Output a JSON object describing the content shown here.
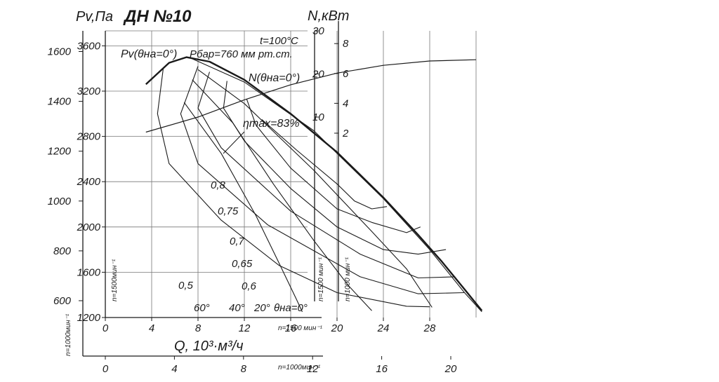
{
  "chart_data": {
    "type": "line",
    "title": "ДН №10",
    "pv_axis_label": "Pv,Па",
    "n_axis_label": "N,кВт",
    "x_axis_label": "Q, 10³·м³/ч",
    "conditions": [
      "t=100°C",
      "Pбар=760 мм рт.ст."
    ],
    "pv_curve_label": "Pv(θна=0°)",
    "n_curve_label": "N(θна=0°)",
    "eta_max_label": "ηmax=83%",
    "speed_labels": {
      "x1500": "n=1500 мин⁻¹",
      "x1000": "n=1000мин⁻¹",
      "y1500": "n=1500мин⁻¹",
      "y1000": "n=1000мин⁻¹",
      "n1500": "n=1500 мин⁻¹",
      "n1000": "n=1000 мин⁻¹"
    },
    "x1500_ticks": [
      "0",
      "4",
      "8",
      "12",
      "16",
      "20",
      "24",
      "28"
    ],
    "x1000_ticks": [
      "0",
      "4",
      "8",
      "12",
      "16",
      "20"
    ],
    "pv1500_ticks": [
      "1200",
      "1600",
      "2000",
      "2400",
      "2800",
      "3200",
      "3600"
    ],
    "pv1000_ticks": [
      "600",
      "800",
      "1000",
      "1200",
      "1400",
      "1600"
    ],
    "n1500_ticks": [
      "10",
      "20",
      "30"
    ],
    "n1000_ticks": [
      "2",
      "4",
      "6",
      "8"
    ],
    "efficiency_labels": [
      "0,8",
      "0,75",
      "0,7",
      "0,65",
      "0,6",
      "0,5"
    ],
    "angle_labels": [
      "60°",
      "40°",
      "20°",
      "θна=0°"
    ],
    "pv_curve_0deg": [
      [
        3.5,
        3260
      ],
      [
        5.5,
        3450
      ],
      [
        7,
        3500
      ],
      [
        9,
        3460
      ],
      [
        12,
        3300
      ],
      [
        16,
        3000
      ],
      [
        20,
        2660
      ],
      [
        24,
        2260
      ],
      [
        27,
        1930
      ],
      [
        29,
        1700
      ],
      [
        31,
        1450
      ],
      [
        32.5,
        1260
      ]
    ],
    "n_curve_0deg": [
      [
        3.5,
        6.5
      ],
      [
        8,
        10
      ],
      [
        12,
        14
      ],
      [
        16,
        17.5
      ],
      [
        20,
        20.2
      ],
      [
        24,
        22
      ],
      [
        28,
        23
      ],
      [
        32,
        23.3
      ]
    ],
    "efficiency_contours": [
      {
        "eta": "0,8",
        "points": [
          [
            13.5,
            2950
          ],
          [
            16.5,
            2680
          ],
          [
            20,
            2380
          ],
          [
            21.5,
            2230
          ],
          [
            23,
            2160
          ],
          [
            24.3,
            2180
          ]
        ]
      },
      {
        "eta": "0,75",
        "points": [
          [
            12.2,
            3130
          ],
          [
            13,
            2900
          ],
          [
            16,
            2520
          ],
          [
            20,
            2160
          ],
          [
            23,
            2040
          ],
          [
            26,
            1950
          ],
          [
            27.2,
            2000
          ]
        ]
      },
      {
        "eta": "0,7",
        "points": [
          [
            10.5,
            3290
          ],
          [
            10.2,
            3050
          ],
          [
            12,
            2760
          ],
          [
            16,
            2340
          ],
          [
            20,
            2000
          ],
          [
            24,
            1800
          ],
          [
            27,
            1760
          ],
          [
            29.4,
            1800
          ]
        ]
      },
      {
        "eta": "0,65",
        "points": [
          [
            9,
            3370
          ],
          [
            8,
            3050
          ],
          [
            10,
            2700
          ],
          [
            16,
            2140
          ],
          [
            22,
            1760
          ],
          [
            27,
            1550
          ],
          [
            30.2,
            1560
          ]
        ]
      },
      {
        "eta": "0,6",
        "points": [
          [
            8,
            3420
          ],
          [
            6.5,
            3000
          ],
          [
            8,
            2560
          ],
          [
            14,
            2020
          ],
          [
            22,
            1560
          ],
          [
            27,
            1410
          ],
          [
            31,
            1420
          ]
        ]
      },
      {
        "eta": "0,5",
        "points": [
          [
            5,
            3400
          ],
          [
            4.5,
            3000
          ],
          [
            5.5,
            2560
          ],
          [
            10,
            2060
          ],
          [
            15,
            1660
          ],
          [
            20,
            1420
          ],
          [
            26,
            1300
          ],
          [
            28,
            1295
          ]
        ]
      }
    ],
    "angle_curves": [
      {
        "angle": "0°",
        "points": [
          [
            7.2,
            3500
          ],
          [
            12,
            3280
          ],
          [
            18,
            2850
          ],
          [
            24,
            2250
          ],
          [
            28,
            1800
          ],
          [
            31,
            1420
          ],
          [
            32.5,
            1250
          ]
        ]
      },
      {
        "angle": "20°",
        "points": [
          [
            8,
            3390
          ],
          [
            12,
            3090
          ],
          [
            18,
            2500
          ],
          [
            23,
            1960
          ],
          [
            26,
            1630
          ],
          [
            28.2,
            1290
          ]
        ]
      },
      {
        "angle": "40°",
        "points": [
          [
            7.5,
            3300
          ],
          [
            11,
            2920
          ],
          [
            14.5,
            2380
          ],
          [
            18,
            1880
          ],
          [
            21,
            1480
          ],
          [
            23,
            1260
          ]
        ]
      },
      {
        "angle": "60°",
        "points": [
          [
            6.8,
            3100
          ],
          [
            10,
            2650
          ],
          [
            13,
            2100
          ],
          [
            15,
            1680
          ],
          [
            16.5,
            1360
          ],
          [
            17,
            1250
          ]
        ]
      }
    ]
  }
}
